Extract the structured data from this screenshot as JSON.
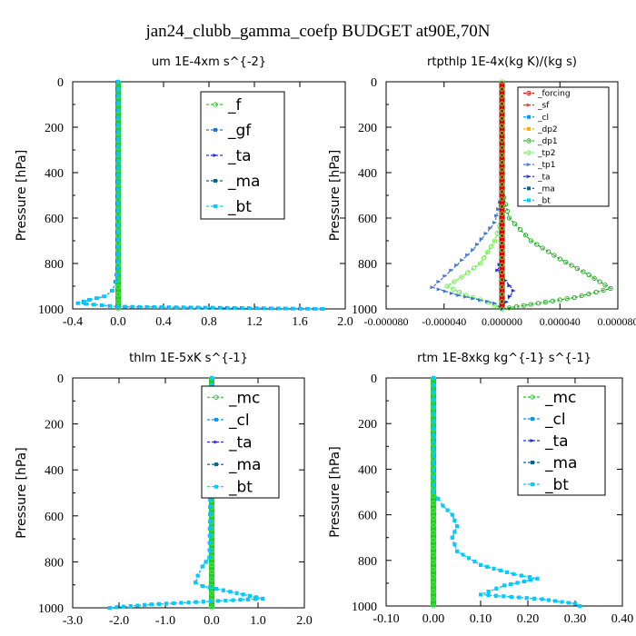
{
  "title": "jan24_clubb_gamma_coefp  BUDGET at90E,70N",
  "chart_data": [
    {
      "type": "line",
      "title": "um  1E-4xm s^{-2}",
      "ylabel": "Pressure [hPa]",
      "xlim": [
        -0.4,
        2.0
      ],
      "ylim": [
        1000,
        0
      ],
      "xticks": [
        "-0.4",
        "0.0",
        "0.4",
        "0.8",
        "1.2",
        "1.6",
        "2.0"
      ],
      "yticks": [
        "0",
        "200",
        "400",
        "600",
        "800",
        "1000"
      ],
      "legend_position": "top-right",
      "legend": [
        "_f",
        "_gf",
        "_ta",
        "_ma",
        "_bt"
      ],
      "series": [
        {
          "name": "_f",
          "color": "#22cc22",
          "x": [
            0,
            0
          ],
          "y": [
            0,
            1000
          ]
        },
        {
          "name": "_ta",
          "color": "#2233dd",
          "x": [
            0,
            0,
            -0.02,
            -0.05,
            -0.12,
            -0.25,
            -0.35,
            0.0,
            1.8
          ],
          "y": [
            0,
            820,
            880,
            920,
            945,
            960,
            975,
            990,
            1000
          ]
        },
        {
          "name": "_bt",
          "color": "#00ccff",
          "x": [
            0,
            0,
            -0.02,
            -0.05,
            -0.12,
            -0.25,
            -0.35,
            0.0,
            1.8
          ],
          "y": [
            0,
            820,
            880,
            920,
            945,
            960,
            975,
            990,
            1000
          ]
        }
      ]
    },
    {
      "type": "line",
      "title": "rtpthlp  1E-4x(kg K)/(kg s)",
      "ylabel": "Pressure [hPa]",
      "xlim": [
        -8e-05,
        8e-05
      ],
      "ylim": [
        1000,
        0
      ],
      "xticks": [
        "-0.000080",
        "-0.000040",
        "0.000000",
        "0.000040",
        "0.000080"
      ],
      "yticks": [
        "0",
        "200",
        "400",
        "600",
        "800",
        "1000"
      ],
      "legend_position": "top-right",
      "legend": [
        "_forcing",
        "_sf",
        "_cl",
        "_dp2",
        "_dp1",
        "_tp2",
        "_tp1",
        "_ta",
        "_ma",
        "_bt"
      ],
      "series": [
        {
          "name": "_dp1",
          "color": "#22aa22",
          "x": [
            0,
            5e-06,
            2e-05,
            4e-05,
            6e-05,
            7.5e-05,
            5e-05,
            1e-05,
            0
          ],
          "y": [
            480,
            600,
            700,
            780,
            850,
            910,
            950,
            990,
            1000
          ]
        },
        {
          "name": "_tp2",
          "color": "#66ee44",
          "x": [
            0,
            -5e-06,
            -1.5e-05,
            -2.8e-05,
            -3.8e-05,
            -2.5e-05,
            -1e-05,
            0
          ],
          "y": [
            600,
            700,
            800,
            860,
            900,
            940,
            970,
            1000
          ]
        },
        {
          "name": "_tp1",
          "color": "#4477cc",
          "x": [
            0,
            -5e-06,
            -2e-05,
            -3.5e-05,
            -4.8e-05,
            -3e-05,
            -5e-06,
            0
          ],
          "y": [
            500,
            620,
            740,
            830,
            905,
            940,
            975,
            1000
          ]
        },
        {
          "name": "_ta",
          "color": "#2233cc",
          "x": [
            0,
            -3e-06,
            8e-06,
            3e-06,
            0
          ],
          "y": [
            780,
            830,
            920,
            970,
            1000
          ]
        },
        {
          "name": "_forcing",
          "color": "#dd0000",
          "x": [
            0,
            0
          ],
          "y": [
            0,
            1000
          ]
        }
      ]
    },
    {
      "type": "line",
      "title": "thlm  1E-5xK s^{-1}",
      "ylabel": "Pressure [hPa]",
      "xlim": [
        -3.0,
        2.0
      ],
      "ylim": [
        1000,
        0
      ],
      "xticks": [
        "-3.0",
        "-2.0",
        "-1.0",
        "0.0",
        "1.0",
        "2.0"
      ],
      "yticks": [
        "0",
        "200",
        "400",
        "600",
        "800",
        "1000"
      ],
      "legend_position": "top-right",
      "legend": [
        "_mc",
        "_cl",
        "_ta",
        "_ma",
        "_bt"
      ],
      "series": [
        {
          "name": "_mc",
          "color": "#22cc22",
          "x": [
            0,
            0
          ],
          "y": [
            0,
            1000
          ]
        },
        {
          "name": "_cl",
          "color": "#0099ff",
          "x": [
            0,
            -0.05,
            -0.2,
            -0.3,
            -0.35,
            -0.2,
            0.4,
            1.1,
            -1.3,
            -2.2
          ],
          "y": [
            0,
            780,
            820,
            860,
            890,
            905,
            930,
            960,
            985,
            1000
          ]
        },
        {
          "name": "_bt",
          "color": "#00ccff",
          "x": [
            0,
            -0.05,
            -0.2,
            -0.3,
            -0.35,
            -0.2,
            0.4,
            1.1,
            -1.3,
            -2.2
          ],
          "y": [
            0,
            780,
            820,
            860,
            890,
            905,
            930,
            960,
            985,
            1000
          ]
        }
      ]
    },
    {
      "type": "line",
      "title": "rtm  1E-8xkg kg^{-1} s^{-1}",
      "ylabel": "Pressure [hPa]",
      "xlim": [
        -0.1,
        0.4
      ],
      "ylim": [
        1000,
        0
      ],
      "xticks": [
        "-0.10",
        "0.00",
        "0.10",
        "0.20",
        "0.30",
        "0.40"
      ],
      "yticks": [
        "0",
        "200",
        "400",
        "600",
        "800",
        "1000"
      ],
      "legend_position": "top-right",
      "legend": [
        "_mc",
        "_cl",
        "_ta",
        "_ma",
        "_bt"
      ],
      "series": [
        {
          "name": "_mc",
          "color": "#22cc22",
          "x": [
            0,
            0
          ],
          "y": [
            0,
            1000
          ]
        },
        {
          "name": "_cl",
          "color": "#0099ff",
          "x": [
            0,
            0.0,
            0.02,
            0.04,
            0.05,
            0.04,
            0.05,
            0.1,
            0.17,
            0.22,
            0.15,
            0.1,
            0.23,
            0.3,
            0.31
          ],
          "y": [
            0,
            500,
            560,
            600,
            650,
            700,
            760,
            820,
            860,
            880,
            910,
            950,
            970,
            990,
            1000
          ]
        },
        {
          "name": "_bt",
          "color": "#00ccff",
          "x": [
            0,
            0.0,
            0.02,
            0.04,
            0.05,
            0.04,
            0.05,
            0.1,
            0.17,
            0.22,
            0.15,
            0.1,
            0.23,
            0.3,
            0.31
          ],
          "y": [
            0,
            500,
            560,
            600,
            650,
            700,
            760,
            820,
            860,
            880,
            910,
            950,
            970,
            990,
            1000
          ]
        }
      ]
    }
  ]
}
